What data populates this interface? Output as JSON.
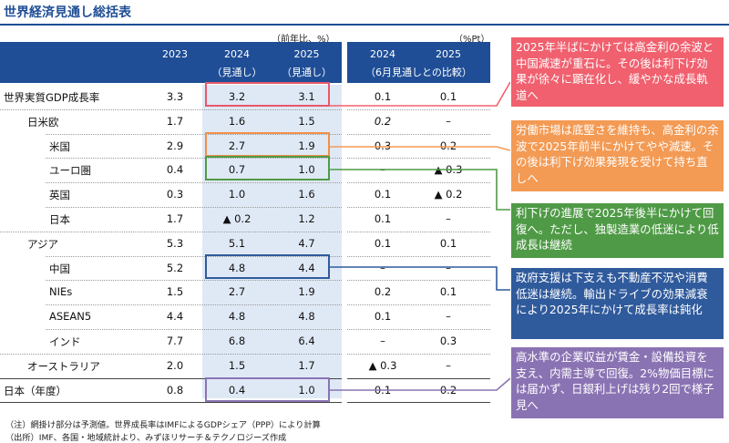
{
  "title": "世界経済見通し総括表",
  "units": {
    "left": "（前年比、%）",
    "right": "（%Pt）"
  },
  "header": {
    "col_2023": "2023",
    "col_2024": "2024",
    "col_2024_sub": "（見通し）",
    "col_2025": "2025",
    "col_2025_sub": "（見通し）",
    "diff_2024": "2024",
    "diff_2025": "2025",
    "diff_sub": "（6月見通しとの比較）"
  },
  "rows": [
    {
      "label": "世界実質GDP成長率",
      "v2023": "3.3",
      "v2024": "3.2",
      "v2025": "3.1",
      "d2024": "0.1",
      "d2025": "0.1"
    },
    {
      "label": "日米欧",
      "v2023": "1.7",
      "v2024": "1.6",
      "v2025": "1.5",
      "d2024": "0.2",
      "d2025": "–"
    },
    {
      "label": "米国",
      "v2023": "2.9",
      "v2024": "2.7",
      "v2025": "1.9",
      "d2024": "0.3",
      "d2025": "0.2"
    },
    {
      "label": "ユーロ圏",
      "v2023": "0.4",
      "v2024": "0.7",
      "v2025": "1.0",
      "d2024": "–",
      "d2025": "▲ 0.3"
    },
    {
      "label": "英国",
      "v2023": "0.3",
      "v2024": "1.0",
      "v2025": "1.6",
      "d2024": "0.1",
      "d2025": "▲ 0.2"
    },
    {
      "label": "日本",
      "v2023": "1.7",
      "v2024": "▲ 0.2",
      "v2025": "1.2",
      "d2024": "0.1",
      "d2025": "–"
    },
    {
      "label": "アジア",
      "v2023": "5.3",
      "v2024": "5.1",
      "v2025": "4.7",
      "d2024": "0.1",
      "d2025": "0.1"
    },
    {
      "label": "中国",
      "v2023": "5.2",
      "v2024": "4.8",
      "v2025": "4.4",
      "d2024": "–",
      "d2025": "–"
    },
    {
      "label": "NIEs",
      "v2023": "1.5",
      "v2024": "2.7",
      "v2025": "1.9",
      "d2024": "0.2",
      "d2025": "0.1"
    },
    {
      "label": "ASEAN5",
      "v2023": "4.4",
      "v2024": "4.8",
      "v2025": "4.8",
      "d2024": "0.1",
      "d2025": "–"
    },
    {
      "label": "インド",
      "v2023": "7.7",
      "v2024": "6.8",
      "v2025": "6.4",
      "d2024": "–",
      "d2025": "0.3"
    },
    {
      "label": "オーストラリア",
      "v2023": "2.0",
      "v2024": "1.5",
      "v2025": "1.7",
      "d2024": "▲ 0.3",
      "d2025": "–"
    },
    {
      "label": "日本（年度）",
      "v2023": "0.8",
      "v2024": "0.4",
      "v2025": "1.0",
      "d2024": "0.1",
      "d2025": "0.2"
    }
  ],
  "callouts": [
    {
      "text": "2025年半ばにかけては高金利の余波と中国減速が重石に。その後は利下げ効果が徐々に顕在化し、緩やかな成長軌道へ",
      "color": "#f0606e"
    },
    {
      "text": "労働市場は底堅さを維持も、高金利の余波で2025年前半にかけてやや減速。その後は利下げ効果発現を受けて持ち直しへ",
      "color": "#f39a54"
    },
    {
      "text": "利下げの進展で2025年後半にかけて回復へ。ただし、独製造業の低迷により低成長は継続",
      "color": "#4f9a46"
    },
    {
      "text": "政府支援は下支えも不動産不況や消費低迷は継続。輸出ドライブの効果減衰により2025年にかけて成長率は鈍化",
      "color": "#2f5a9c"
    },
    {
      "text": "高水準の企業収益が賃金・設備投資を支え、内需主導で回復。2%物価目標には届かず、日銀利上げは残り2回で様子見へ",
      "color": "#8a73b3"
    }
  ],
  "footer": {
    "note": "（注）網掛け部分は予測値。世界成長率はIMFによるGDPシェア（PPP）により計算",
    "source": "（出所）IMF、各国・地域統計より、みずほリサーチ＆テクノロジーズ作成"
  }
}
